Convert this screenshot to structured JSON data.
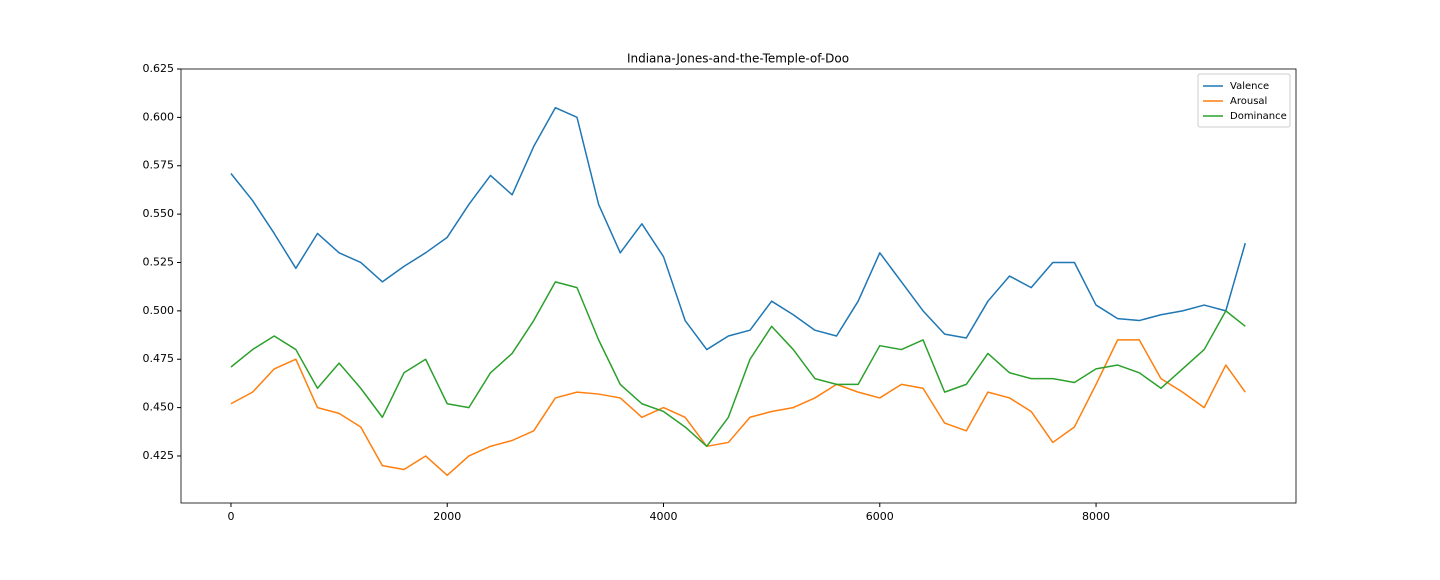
{
  "chart_data": {
    "type": "line",
    "title": "Indiana-Jones-and-the-Temple-of-Doo",
    "x": [
      0,
      200,
      400,
      600,
      800,
      1000,
      1200,
      1400,
      1600,
      1800,
      2000,
      2200,
      2400,
      2600,
      2800,
      3000,
      3200,
      3400,
      3600,
      3800,
      4000,
      4200,
      4400,
      4600,
      4800,
      5000,
      5200,
      5400,
      5600,
      5800,
      6000,
      6200,
      6400,
      6600,
      6800,
      7000,
      7200,
      7400,
      7600,
      7800,
      8000,
      8200,
      8400,
      8600,
      8800,
      9000,
      9200,
      9380
    ],
    "series": [
      {
        "name": "Valence",
        "color": "#1f77b4",
        "values": [
          0.571,
          0.557,
          0.54,
          0.522,
          0.54,
          0.53,
          0.525,
          0.515,
          0.523,
          0.53,
          0.538,
          0.555,
          0.57,
          0.56,
          0.585,
          0.605,
          0.6,
          0.555,
          0.53,
          0.545,
          0.528,
          0.495,
          0.48,
          0.487,
          0.49,
          0.505,
          0.498,
          0.49,
          0.487,
          0.505,
          0.53,
          0.515,
          0.5,
          0.488,
          0.486,
          0.505,
          0.518,
          0.512,
          0.525,
          0.525,
          0.503,
          0.496,
          0.495,
          0.498,
          0.5,
          0.503,
          0.5,
          0.535
        ]
      },
      {
        "name": "Arousal",
        "color": "#ff7f0e",
        "values": [
          0.452,
          0.458,
          0.47,
          0.475,
          0.45,
          0.447,
          0.44,
          0.42,
          0.418,
          0.425,
          0.415,
          0.425,
          0.43,
          0.433,
          0.438,
          0.455,
          0.458,
          0.457,
          0.455,
          0.445,
          0.45,
          0.445,
          0.43,
          0.432,
          0.445,
          0.448,
          0.45,
          0.455,
          0.462,
          0.458,
          0.455,
          0.462,
          0.46,
          0.442,
          0.438,
          0.458,
          0.455,
          0.448,
          0.432,
          0.44,
          0.462,
          0.485,
          0.485,
          0.465,
          0.458,
          0.45,
          0.472,
          0.458
        ]
      },
      {
        "name": "Dominance",
        "color": "#2ca02c",
        "values": [
          0.471,
          0.48,
          0.487,
          0.48,
          0.46,
          0.473,
          0.46,
          0.445,
          0.468,
          0.475,
          0.452,
          0.45,
          0.468,
          0.478,
          0.495,
          0.515,
          0.512,
          0.485,
          0.462,
          0.452,
          0.448,
          0.44,
          0.43,
          0.445,
          0.475,
          0.492,
          0.48,
          0.465,
          0.462,
          0.462,
          0.482,
          0.48,
          0.485,
          0.458,
          0.462,
          0.478,
          0.468,
          0.465,
          0.465,
          0.463,
          0.47,
          0.472,
          0.468,
          0.46,
          0.47,
          0.48,
          0.5,
          0.492
        ]
      }
    ],
    "xlim": [
      -462,
      9849
    ],
    "xticks": [
      0,
      2000,
      4000,
      6000,
      8000
    ],
    "ylim": [
      0.4007,
      0.625
    ],
    "yticks": [
      0.425,
      {
        "value": 0.45,
        "label": "0.450"
      },
      0.475,
      {
        "value": 0.5,
        "label": "0.500"
      },
      0.525,
      {
        "value": 0.55,
        "label": "0.550"
      },
      0.575,
      {
        "value": 0.6,
        "label": "0.600"
      },
      0.625
    ],
    "legend": "upper right"
  }
}
